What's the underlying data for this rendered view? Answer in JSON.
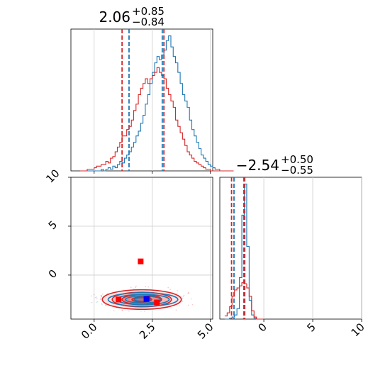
{
  "colors": {
    "blue": "#1f77b4",
    "red": "#d62728",
    "marker_blue": "#0000ff",
    "marker_red": "#ff0000",
    "grid": "#cccccc"
  },
  "chart_data": [
    {
      "type": "histogram",
      "panel": "top-left",
      "title_main": "2.06",
      "title_sup": "+0.85",
      "title_sub": "−0.84",
      "xlim": [
        -1.0,
        5.1
      ],
      "xticks": [
        0.0,
        2.5,
        5.0
      ],
      "grid": true,
      "bin_start": -0.6,
      "bin_width": 0.1,
      "series": [
        {
          "color": "blue",
          "counts": [
            0,
            0,
            0,
            0,
            0,
            0,
            0,
            0,
            0,
            1,
            0,
            1,
            2,
            1,
            3,
            2,
            4,
            6,
            5,
            8,
            10,
            12,
            15,
            18,
            22,
            25,
            30,
            35,
            42,
            48,
            55,
            62,
            68,
            72,
            70,
            73,
            76,
            82,
            85,
            78,
            72,
            68,
            62,
            55,
            48,
            44,
            40,
            32,
            26,
            22,
            18,
            14,
            10,
            8,
            6,
            4,
            3,
            2,
            1,
            1,
            0,
            0,
            0,
            0,
            0,
            0
          ],
          "quantile_lines": [
            1.5,
            2.93
          ]
        },
        {
          "color": "red",
          "counts": [
            0,
            0,
            0,
            1,
            1,
            1,
            2,
            3,
            3,
            4,
            4,
            6,
            5,
            8,
            9,
            12,
            15,
            18,
            22,
            22,
            26,
            28,
            32,
            38,
            42,
            48,
            52,
            55,
            58,
            55,
            58,
            60,
            62,
            65,
            62,
            60,
            58,
            52,
            48,
            44,
            40,
            32,
            28,
            24,
            20,
            16,
            12,
            10,
            8,
            6,
            5,
            4,
            3,
            2,
            1,
            1,
            0,
            0,
            0,
            0,
            0,
            0,
            0,
            0,
            0,
            0
          ],
          "quantile_lines": [
            1.2,
            3.0
          ]
        }
      ]
    },
    {
      "type": "histogram",
      "panel": "bottom-right",
      "title_main": "−2.54",
      "title_sup": "+0.50",
      "title_sub": "−0.55",
      "xlim": [
        -4.5,
        10.0
      ],
      "xticks": [
        0,
        5,
        10
      ],
      "grid": true,
      "bin_start": -4.0,
      "bin_width": 0.25,
      "series": [
        {
          "color": "blue",
          "counts": [
            0,
            0,
            1,
            2,
            4,
            10,
            40,
            100,
            130,
            70,
            18,
            4,
            1,
            0,
            0,
            0
          ],
          "quantile_lines": [
            -3.05,
            -2.05
          ]
        },
        {
          "color": "red",
          "counts": [
            3,
            6,
            12,
            22,
            28,
            30,
            32,
            35,
            34,
            30,
            22,
            8,
            2,
            0,
            0,
            0
          ],
          "quantile_lines": [
            -3.3,
            -1.95
          ]
        }
      ]
    },
    {
      "type": "contour",
      "panel": "bottom-left",
      "xlim": [
        -1.0,
        5.1
      ],
      "ylim": [
        -4.5,
        10.0
      ],
      "xticks": [
        0.0,
        2.5,
        5.0
      ],
      "yticks": [
        0,
        5,
        10
      ],
      "grid": true,
      "series": [
        {
          "color": "red",
          "center": [
            2.05,
            -2.5
          ],
          "sigma": [
            0.85,
            0.5
          ]
        },
        {
          "color": "blue",
          "center": [
            2.1,
            -2.5
          ],
          "sigma": [
            0.75,
            0.35
          ]
        }
      ],
      "markers": [
        {
          "color": "marker_red",
          "x": 2.0,
          "y": 1.4
        },
        {
          "color": "marker_red",
          "x": 1.05,
          "y": -2.5
        },
        {
          "color": "marker_red",
          "x": 2.3,
          "y": -2.4
        },
        {
          "color": "marker_red",
          "x": 2.7,
          "y": -2.8
        },
        {
          "color": "marker_blue",
          "x": 2.25,
          "y": -2.45
        }
      ]
    }
  ]
}
